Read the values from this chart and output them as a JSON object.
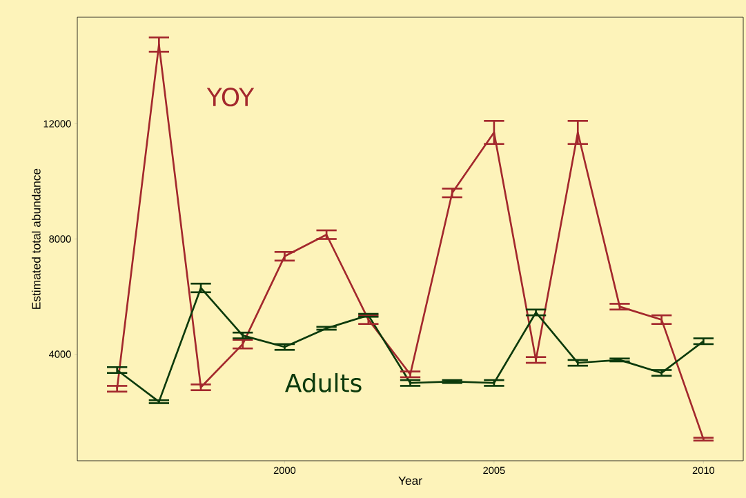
{
  "chart_data": {
    "type": "line",
    "xlabel": "Year",
    "ylabel": "Estimated total abundance",
    "x": [
      1996,
      1997,
      1998,
      1999,
      2000,
      2001,
      2002,
      2003,
      2004,
      2005,
      2006,
      2007,
      2008,
      2009,
      2010
    ],
    "series": [
      {
        "name": "YOY",
        "color": "#a3282d",
        "values": [
          2800,
          14750,
          2850,
          4350,
          7400,
          8150,
          5200,
          3300,
          9600,
          11700,
          3800,
          11700,
          5650,
          5200,
          1050
        ],
        "errors": [
          100,
          250,
          100,
          150,
          150,
          150,
          150,
          100,
          150,
          400,
          100,
          400,
          100,
          150,
          50
        ]
      },
      {
        "name": "Adults",
        "color": "#0c3a0c",
        "values": [
          3450,
          2350,
          6300,
          4650,
          4250,
          4900,
          5350,
          3000,
          3050,
          3000,
          5450,
          3700,
          3800,
          3350,
          4450
        ],
        "errors": [
          100,
          50,
          150,
          100,
          100,
          50,
          50,
          100,
          50,
          100,
          100,
          100,
          50,
          100,
          100
        ]
      }
    ],
    "xlim": [
      1995.05,
      2010.95
    ],
    "ylim": [
      300,
      15700
    ],
    "xticks": [
      2000,
      2005,
      2010
    ],
    "yticks": [
      4000,
      8000,
      12000
    ],
    "grid": false,
    "legend": false,
    "marker": "none",
    "line_style": "solid"
  }
}
